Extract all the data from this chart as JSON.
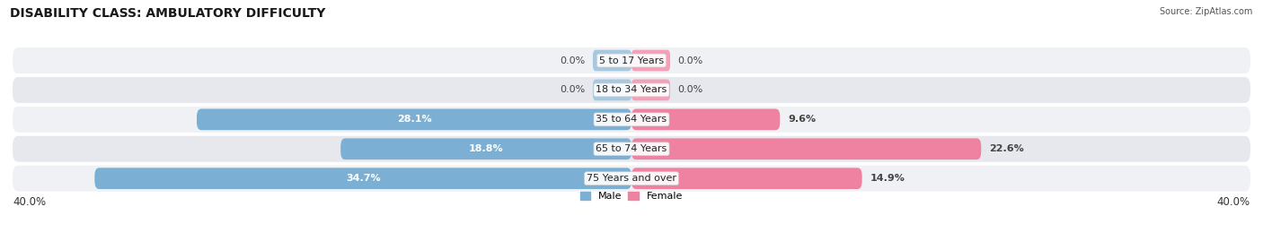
{
  "title": "DISABILITY CLASS: AMBULATORY DIFFICULTY",
  "source": "Source: ZipAtlas.com",
  "categories": [
    "5 to 17 Years",
    "18 to 34 Years",
    "35 to 64 Years",
    "65 to 74 Years",
    "75 Years and over"
  ],
  "male_values": [
    0.0,
    0.0,
    28.1,
    18.8,
    34.7
  ],
  "female_values": [
    0.0,
    0.0,
    9.6,
    22.6,
    14.9
  ],
  "male_color": "#7bafd4",
  "female_color": "#ee82a0",
  "male_stub_color": "#a8c8e0",
  "female_stub_color": "#f5a0b8",
  "row_bg_even": "#f0f1f4",
  "row_bg_odd": "#e6e8ed",
  "max_val": 40.0,
  "stub_size": 2.5,
  "legend_male": "Male",
  "legend_female": "Female",
  "title_fontsize": 10,
  "label_fontsize": 8,
  "category_fontsize": 8,
  "axis_label_fontsize": 8.5
}
